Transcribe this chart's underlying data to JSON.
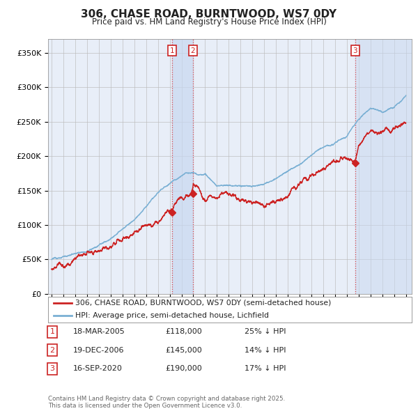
{
  "title_line1": "306, CHASE ROAD, BURNTWOOD, WS7 0DY",
  "title_line2": "Price paid vs. HM Land Registry's House Price Index (HPI)",
  "ylim": [
    0,
    370000
  ],
  "yticks": [
    0,
    50000,
    100000,
    150000,
    200000,
    250000,
    300000,
    350000
  ],
  "ytick_labels": [
    "£0",
    "£50K",
    "£100K",
    "£150K",
    "£200K",
    "£250K",
    "£300K",
    "£350K"
  ],
  "x_start_year": 1995,
  "x_end_year": 2025,
  "background_color": "#ffffff",
  "plot_bg_color": "#e8eef8",
  "grid_color": "#bbbbbb",
  "hpi_color": "#7ab0d4",
  "price_color": "#cc2222",
  "vline_color": "#dd4444",
  "sale1_year": 2005.21,
  "sale2_year": 2006.96,
  "sale3_year": 2020.71,
  "sale1_price": 118000,
  "sale2_price": 145000,
  "sale3_price": 190000,
  "legend_entry1": "306, CHASE ROAD, BURNTWOOD, WS7 0DY (semi-detached house)",
  "legend_entry2": "HPI: Average price, semi-detached house, Lichfield",
  "table_rows": [
    {
      "num": "1",
      "date": "18-MAR-2005",
      "price": "£118,000",
      "note": "25% ↓ HPI"
    },
    {
      "num": "2",
      "date": "19-DEC-2006",
      "price": "£145,000",
      "note": "14% ↓ HPI"
    },
    {
      "num": "3",
      "date": "16-SEP-2020",
      "price": "£190,000",
      "note": "17% ↓ HPI"
    }
  ],
  "footer": "Contains HM Land Registry data © Crown copyright and database right 2025.\nThis data is licensed under the Open Government Licence v3.0."
}
